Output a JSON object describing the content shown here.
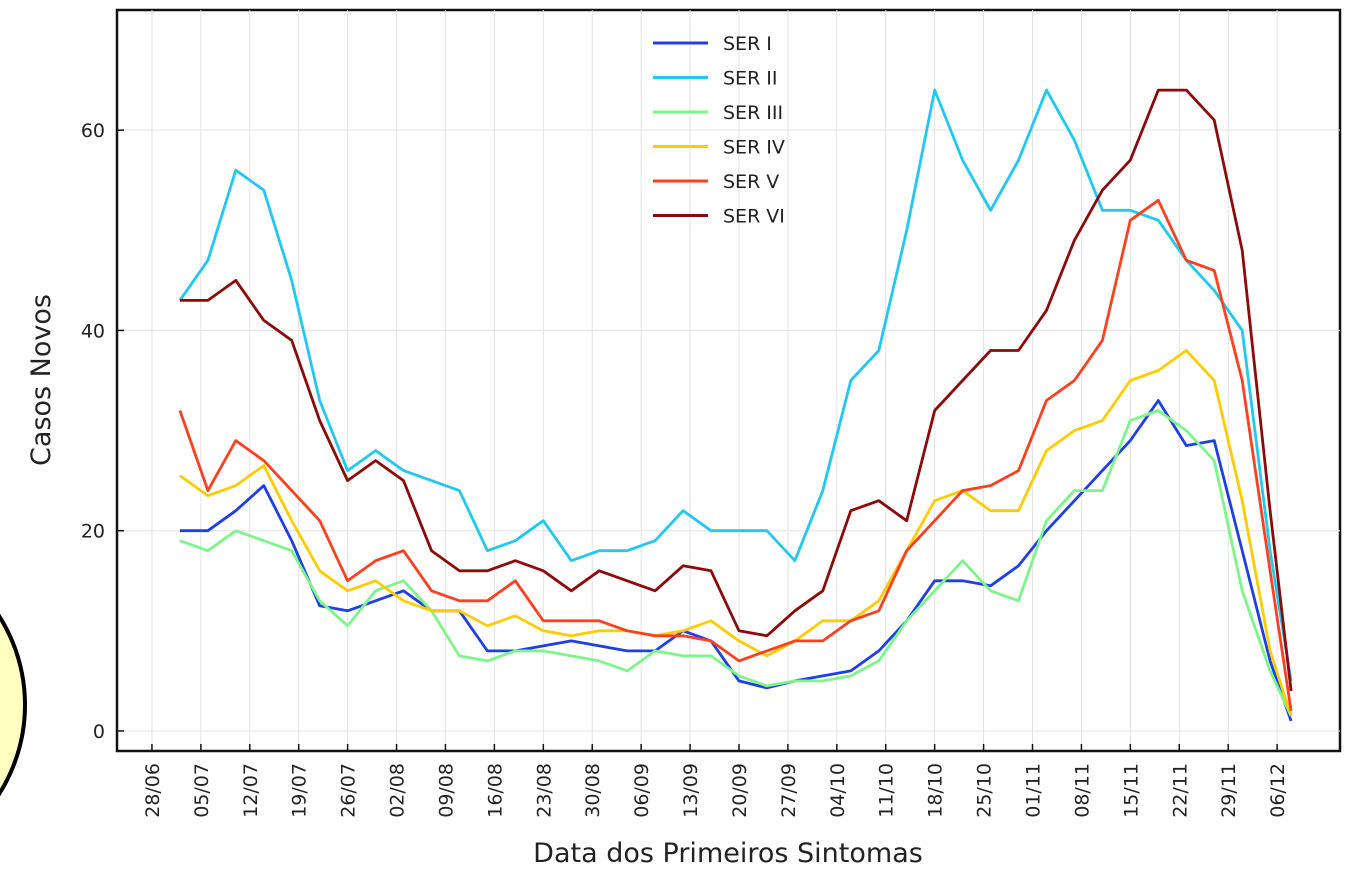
{
  "chart_data": {
    "type": "line",
    "xlabel": "Data dos Primeiros Sintomas",
    "ylabel": "Casos Novos",
    "x": [
      "02/07",
      "06/07",
      "10/07",
      "14/07",
      "18/07",
      "22/07",
      "26/07",
      "30/07",
      "03/08",
      "07/08",
      "11/08",
      "15/08",
      "19/08",
      "23/08",
      "27/08",
      "31/08",
      "04/09",
      "08/09",
      "12/09",
      "16/09",
      "20/09",
      "24/09",
      "28/09",
      "02/10",
      "06/10",
      "10/10",
      "14/10",
      "18/10",
      "22/10",
      "26/10",
      "30/10",
      "03/11",
      "07/11",
      "11/11",
      "15/11",
      "19/11",
      "23/11",
      "27/11",
      "01/12",
      "05/12",
      "08/12"
    ],
    "xlim": [
      "23/06",
      "15/12"
    ],
    "xticks": [
      "28/06",
      "05/07",
      "12/07",
      "19/07",
      "26/07",
      "02/08",
      "09/08",
      "16/08",
      "23/08",
      "30/08",
      "06/09",
      "13/09",
      "20/09",
      "27/09",
      "04/10",
      "11/10",
      "18/10",
      "25/10",
      "01/11",
      "08/11",
      "15/11",
      "22/11",
      "29/11",
      "06/12"
    ],
    "ylim": [
      -2,
      72
    ],
    "yticks": [
      0,
      20,
      40,
      60
    ],
    "grid": true,
    "legend": "upper center",
    "series": [
      {
        "name": "SER I",
        "color": "#1f3fe6",
        "values": [
          20,
          20,
          22,
          24.5,
          19,
          12.5,
          12,
          13,
          14,
          12,
          12,
          8,
          8,
          8.5,
          9,
          8.5,
          8,
          8,
          10,
          9,
          5,
          4.3,
          5,
          5.5,
          6,
          8,
          11,
          15,
          15,
          14.5,
          16.5,
          20,
          23,
          26,
          29,
          33,
          28.5,
          29,
          18,
          7,
          1
        ]
      },
      {
        "name": "SER II",
        "color": "#22c8f0",
        "values": [
          43,
          47,
          56,
          54,
          45,
          33,
          26,
          28,
          26,
          25,
          24,
          18,
          19,
          21,
          17,
          18,
          18,
          19,
          22,
          20,
          20,
          20,
          17,
          24,
          35,
          38,
          50,
          64,
          57,
          52,
          57,
          64,
          59,
          52,
          52,
          51,
          47,
          44,
          40,
          18,
          5
        ]
      },
      {
        "name": "SER III",
        "color": "#7ef58a",
        "values": [
          19,
          18,
          20,
          19,
          18,
          13,
          10.5,
          14,
          15,
          12,
          7.5,
          7,
          8,
          8,
          7.5,
          7,
          6,
          8,
          7.5,
          7.5,
          5.5,
          4.5,
          5,
          5,
          5.5,
          7,
          11,
          14,
          17,
          14,
          13,
          21,
          24,
          24,
          31,
          32,
          30,
          27,
          14,
          6,
          1.5
        ]
      },
      {
        "name": "SER IV",
        "color": "#ffcc00",
        "values": [
          25.5,
          23.5,
          24.5,
          26.5,
          21,
          16,
          14,
          15,
          13,
          12,
          12,
          10.5,
          11.5,
          10,
          9.5,
          10,
          10,
          9.5,
          10,
          11,
          9,
          7.5,
          9,
          11,
          11,
          13,
          18,
          23,
          24,
          22,
          22,
          28,
          30,
          31,
          35,
          36,
          38,
          35,
          23,
          8,
          1.5
        ]
      },
      {
        "name": "SER V",
        "color": "#ff4020",
        "values": [
          32,
          24,
          29,
          27,
          24,
          21,
          15,
          17,
          18,
          14,
          13,
          13,
          15,
          11,
          11,
          11,
          10,
          9.5,
          9.5,
          9,
          7,
          8,
          9,
          9,
          11,
          12,
          18,
          21,
          24,
          24.5,
          26,
          33,
          35,
          39,
          51,
          53,
          47,
          46,
          35,
          16,
          2
        ]
      },
      {
        "name": "SER VI",
        "color": "#8b0a0a",
        "values": [
          43,
          43,
          45,
          41,
          39,
          31,
          25,
          27,
          25,
          18,
          16,
          16,
          17,
          16,
          14,
          16,
          15,
          14,
          16.5,
          16,
          10,
          9.5,
          12,
          14,
          22,
          23,
          21,
          32,
          35,
          38,
          38,
          42,
          49,
          54,
          57,
          64,
          64,
          61,
          48,
          22,
          4
        ]
      }
    ]
  }
}
